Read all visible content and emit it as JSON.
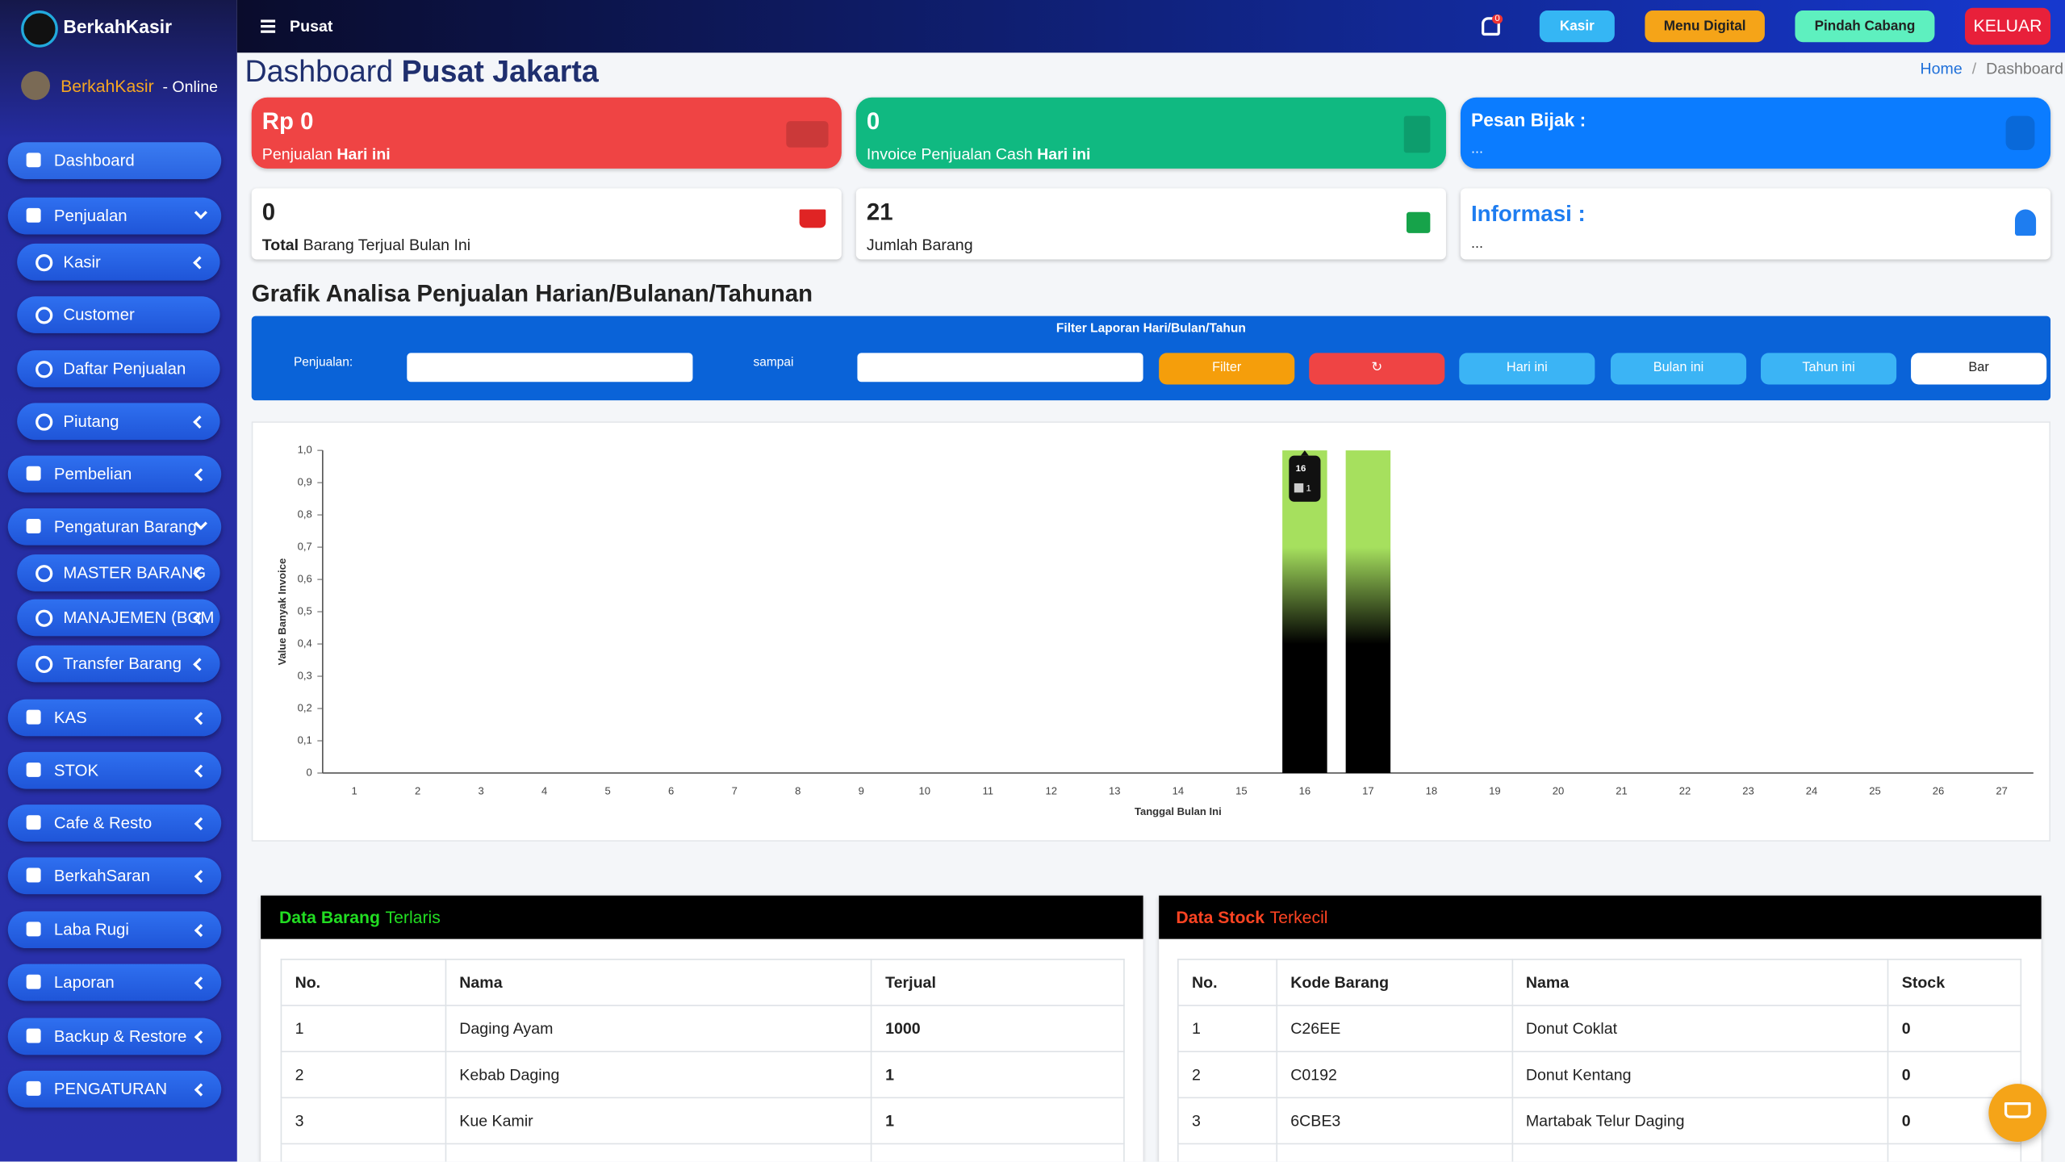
{
  "sidebar": {
    "brand": "BerkahKasir",
    "user": "BerkahKasir",
    "status": "- Online",
    "menu": [
      "Dashboard",
      "Penjualan",
      "Kasir",
      "Customer",
      "Daftar Penjualan",
      "Piutang",
      "Pembelian",
      "Pengaturan Barang",
      "MASTER BARANG",
      "MANAJEMEN (BOM",
      "Transfer Barang",
      "KAS",
      "STOK",
      "Cafe & Resto",
      "BerkahSaran",
      "Laba Rugi",
      "Laporan",
      "Backup & Restore",
      "PENGATURAN"
    ]
  },
  "topbar": {
    "branch": "Pusat",
    "notifications": "0",
    "buttons": [
      "Kasir",
      "Menu Digital",
      "Pindah Cabang",
      "KELUAR"
    ]
  },
  "header": {
    "title": "Dashboard",
    "title_bold": "Pusat Jakarta",
    "breadcrumb": [
      "Home",
      "Dashboard"
    ]
  },
  "cards": {
    "sales_today": {
      "value": "Rp 0",
      "label": "Penjualan",
      "label_bold": "Hari ini"
    },
    "invoice_today": {
      "value": "0",
      "label": "Invoice Penjualan Cash",
      "label_bold": "Hari ini"
    },
    "quote": {
      "title": "Pesan Bijak :",
      "text": "..."
    },
    "sold_month": {
      "value": "0",
      "label_bold": "Total",
      "label": "Barang Terjual Bulan Ini"
    },
    "items": {
      "value": "21",
      "label": "Jumlah Barang"
    },
    "info": {
      "title": "Informasi :",
      "text": "..."
    }
  },
  "section_title": "Grafik Analisa Penjualan Harian/Bulanan/Tahunan",
  "filter": {
    "title": "Filter Laporan Hari/Bulan/Tahun",
    "from_label": "Penjualan:",
    "to_label": "sampai",
    "buttons": [
      "Filter",
      "Hari ini",
      "Bulan ini",
      "Tahun ini",
      "Bar"
    ]
  },
  "chart_data": {
    "type": "bar",
    "x_label": "Tanggal Bulan Ini",
    "y_label": "Value Banyak Invoice",
    "categories": [
      "1",
      "2",
      "3",
      "4",
      "5",
      "6",
      "7",
      "8",
      "9",
      "10",
      "11",
      "12",
      "13",
      "14",
      "15",
      "16",
      "17",
      "18",
      "19",
      "20",
      "21",
      "22",
      "23",
      "24",
      "25",
      "26",
      "27"
    ],
    "values": [
      0,
      0,
      0,
      0,
      0,
      0,
      0,
      0,
      0,
      0,
      0,
      0,
      0,
      0,
      0,
      1,
      1,
      0,
      0,
      0,
      0,
      0,
      0,
      0,
      0,
      0,
      0
    ],
    "color": "#a6e05e",
    "ylim": [
      0,
      1
    ],
    "yticks": [
      0,
      {
        "value": 0.1,
        "label": "0,1"
      },
      {
        "value": 0.2,
        "label": "0,2"
      },
      {
        "value": 0.3,
        "label": "0,3"
      },
      {
        "value": 0.4,
        "label": "0,4"
      },
      {
        "value": 0.5,
        "label": "0,5"
      },
      {
        "value": 0.6,
        "label": "0,6"
      },
      {
        "value": 0.7,
        "label": "0,7"
      },
      {
        "value": 0.8,
        "label": "0,8"
      },
      {
        "value": 0.9,
        "label": "0,9"
      },
      {
        "value": 1,
        "label": "1,0"
      }
    ],
    "grid": false
  },
  "tables": [
    {
      "title": "Data Barang",
      "title_accent": "Terlaris",
      "columns": [
        "No.",
        "Nama",
        "Terjual"
      ],
      "rows": [
        [
          "1",
          "Daging Ayam",
          "1000"
        ],
        [
          "2",
          "Kebab Daging",
          "1"
        ],
        [
          "3",
          "Kue Kamir",
          "1"
        ]
      ]
    },
    {
      "title": "Data Stock",
      "title_accent": "Terkecil",
      "columns": [
        "No.",
        "Kode Barang",
        "Nama",
        "Stock"
      ],
      "rows": [
        [
          "1",
          "C26EE",
          "Donut Coklat",
          "0"
        ],
        [
          "2",
          "C0192",
          "Donut Kentang",
          "0"
        ],
        [
          "3",
          "6CBE3",
          "Martabak Telur Daging",
          "0"
        ]
      ]
    }
  ]
}
